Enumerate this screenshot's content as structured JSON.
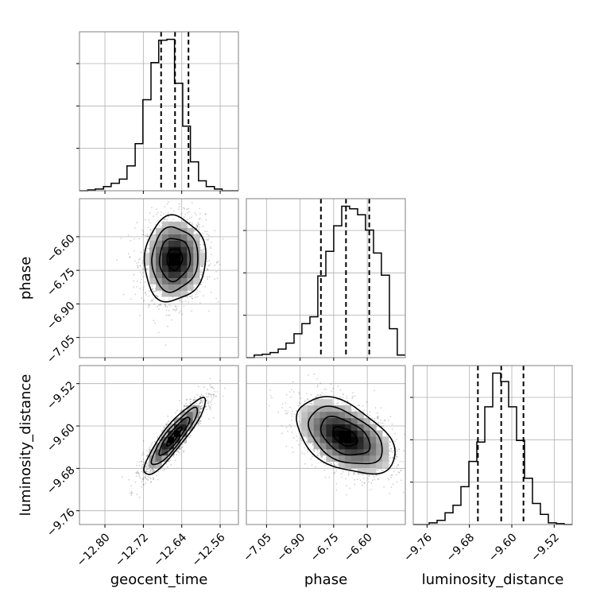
{
  "chart_data": {
    "type": "corner",
    "parameters": [
      "geocent_time",
      "phase",
      "luminosity_distance"
    ],
    "axis_labels": {
      "x": [
        "geocent_time",
        "phase",
        "luminosity_distance"
      ],
      "y": [
        "phase",
        "luminosity_distance"
      ]
    },
    "ranges": {
      "geocent_time": [
        -12.853,
        -12.522
      ],
      "phase": [
        -7.14,
        -6.43
      ],
      "luminosity_distance": [
        -9.786,
        -9.486
      ]
    },
    "ticks": {
      "geocent_time": {
        "values": [
          -12.8,
          -12.72,
          -12.64,
          -12.56
        ],
        "labels": [
          "−12.80",
          "−12.72",
          "−12.64",
          "−12.56"
        ]
      },
      "phase": {
        "values": [
          -7.05,
          -6.9,
          -6.75,
          -6.6
        ],
        "labels": [
          "−7.05",
          "−6.90",
          "−6.75",
          "−6.60"
        ]
      },
      "luminosity_distance": {
        "values": [
          -9.76,
          -9.68,
          -9.6,
          -9.52
        ],
        "labels": [
          "−9.76",
          "−9.68",
          "−9.60",
          "−9.52"
        ]
      }
    },
    "quantiles": {
      "geocent_time": [
        -12.683,
        -12.654,
        -12.626
      ],
      "phase": [
        -6.807,
        -6.695,
        -6.591
      ],
      "luminosity_distance": [
        -9.664,
        -9.62,
        -9.578
      ]
    },
    "histograms": {
      "geocent_time": {
        "bins": [
          -12.853,
          -12.836,
          -12.82,
          -12.803,
          -12.787,
          -12.77,
          -12.754,
          -12.737,
          -12.721,
          -12.704,
          -12.688,
          -12.671,
          -12.655,
          -12.638,
          -12.622,
          -12.605,
          -12.589,
          -12.572,
          -12.556,
          -12.539,
          -12.522
        ],
        "counts": [
          0,
          1,
          2,
          5,
          9,
          14,
          30,
          57,
          110,
          155,
          182,
          183,
          130,
          78,
          35,
          12,
          5,
          2,
          0,
          0
        ]
      },
      "phase": {
        "bins": [
          -7.14,
          -7.105,
          -7.069,
          -7.034,
          -6.998,
          -6.963,
          -6.927,
          -6.892,
          -6.856,
          -6.821,
          -6.785,
          -6.75,
          -6.714,
          -6.679,
          -6.643,
          -6.608,
          -6.572,
          -6.537,
          -6.501,
          -6.466,
          -6.43
        ],
        "counts": [
          0,
          3,
          4,
          6,
          10,
          17,
          28,
          40,
          48,
          96,
          125,
          155,
          178,
          175,
          168,
          150,
          123,
          97,
          34,
          3
        ]
      },
      "luminosity_distance": {
        "bins": [
          -9.786,
          -9.771,
          -9.756,
          -9.741,
          -9.726,
          -9.711,
          -9.696,
          -9.681,
          -9.666,
          -9.651,
          -9.636,
          -9.621,
          -9.606,
          -9.591,
          -9.576,
          -9.561,
          -9.546,
          -9.531,
          -9.516,
          -9.501,
          -9.486
        ],
        "counts": [
          0,
          0,
          2,
          5,
          14,
          23,
          45,
          75,
          98,
          140,
          180,
          170,
          140,
          100,
          55,
          25,
          12,
          2,
          1,
          0
        ]
      }
    },
    "joint": [
      {
        "x": "geocent_time",
        "y": "phase",
        "center": [
          -12.655,
          -6.7
        ],
        "spread": [
          0.032,
          0.095
        ],
        "corr": 0.05
      },
      {
        "x": "geocent_time",
        "y": "luminosity_distance",
        "center": [
          -12.656,
          -9.62
        ],
        "spread": [
          0.032,
          0.036
        ],
        "corr": 0.9
      },
      {
        "x": "phase",
        "y": "luminosity_distance",
        "center": [
          -6.7,
          -9.62
        ],
        "spread": [
          0.11,
          0.036
        ],
        "corr": -0.45
      }
    ],
    "contour_levels_sigma": [
      0.5,
      1.0,
      1.5,
      2.0
    ],
    "grid": true,
    "colors": {
      "line": "#000000",
      "grid": "#b0b0b0",
      "points": "#000000",
      "frame": "#808080"
    }
  }
}
